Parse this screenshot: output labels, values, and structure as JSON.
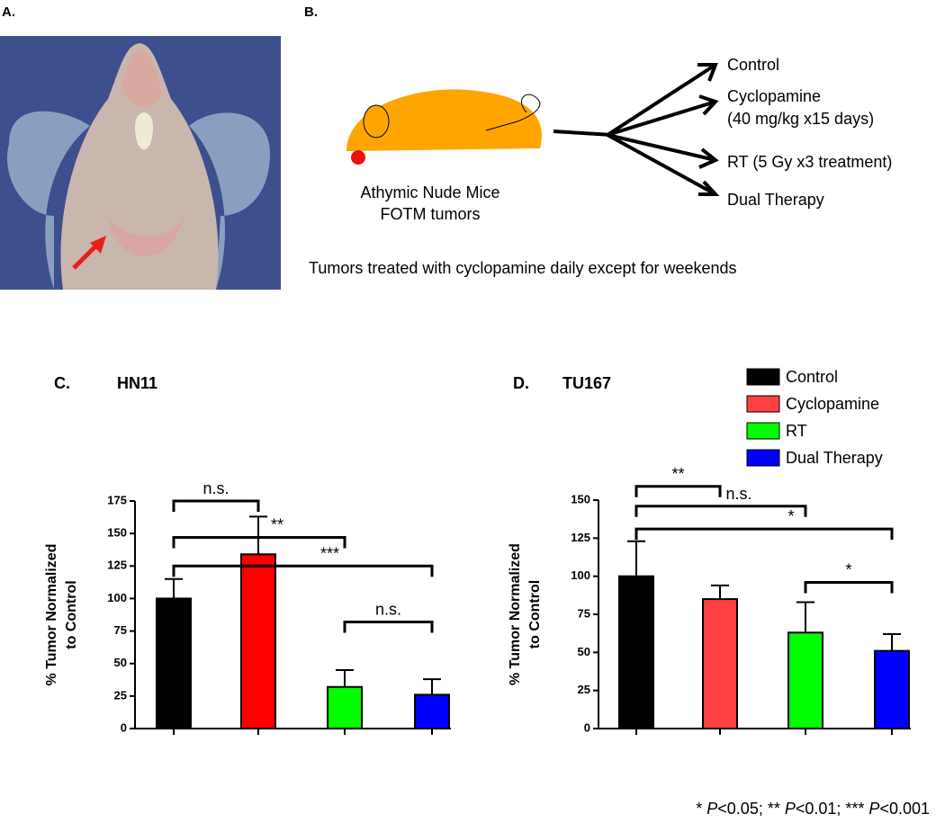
{
  "panels": {
    "a": "A.",
    "b": "B."
  },
  "diagram": {
    "mouse_lines": [
      "Athymic Nude Mice",
      "FOTM tumors"
    ],
    "arms": [
      "Control",
      "Cyclopamine",
      "(40 mg/kg x15 days)",
      "RT (5 Gy x3 treatment)",
      "Dual Therapy"
    ],
    "note": "Tumors treated with cyclopamine daily except for weekends"
  },
  "footnote": [
    "* ",
    "P",
    "<0.05; ** ",
    "P",
    "<0.01; *** ",
    "P",
    "<0.001"
  ],
  "chart_data": [
    {
      "type": "bar",
      "panel": "C.",
      "title": "HN11",
      "ylabel": [
        "% Tumor Normalized",
        "to Control"
      ],
      "values": [
        100,
        134,
        32,
        26
      ],
      "errors": [
        15,
        29,
        13,
        12
      ],
      "colors": [
        "#000000",
        "#ff0000",
        "#00ff00",
        "#0000ff"
      ],
      "ylim": [
        0,
        175
      ],
      "yticks": [
        0,
        25,
        50,
        75,
        100,
        125,
        150,
        175
      ],
      "annotations": [
        {
          "text": "n.s.",
          "from": 0,
          "to": 1,
          "y": 175
        },
        {
          "text": "**",
          "from": 0,
          "to": 2,
          "y": 147
        },
        {
          "text": "***",
          "from": 0,
          "to": 3,
          "y": 125
        },
        {
          "text": "n.s.",
          "from": 2,
          "to": 3,
          "y": 82
        }
      ]
    },
    {
      "type": "bar",
      "panel": "D.",
      "title": "TU167",
      "ylabel": [
        "% Tumor Normalized",
        "to Control"
      ],
      "categories": [
        "Control",
        "Cyclopamine",
        "RT",
        "Dual Therapy"
      ],
      "values": [
        100,
        85,
        63,
        51
      ],
      "errors": [
        23,
        9,
        20,
        11
      ],
      "colors": [
        "#000000",
        "#ff4040",
        "#00ff00",
        "#0000ff"
      ],
      "ylim": [
        0,
        150
      ],
      "yticks": [
        0,
        25,
        50,
        75,
        100,
        125,
        150
      ],
      "annotations": [
        {
          "text": "**",
          "from": 0,
          "to": 1,
          "y": 159
        },
        {
          "text": "n.s.",
          "from": 0,
          "to": 2,
          "y": 146
        },
        {
          "text": "*",
          "from": 0,
          "to": 3,
          "y": 131
        },
        {
          "text": "*",
          "from": 2,
          "to": 3,
          "y": 96
        }
      ]
    }
  ]
}
